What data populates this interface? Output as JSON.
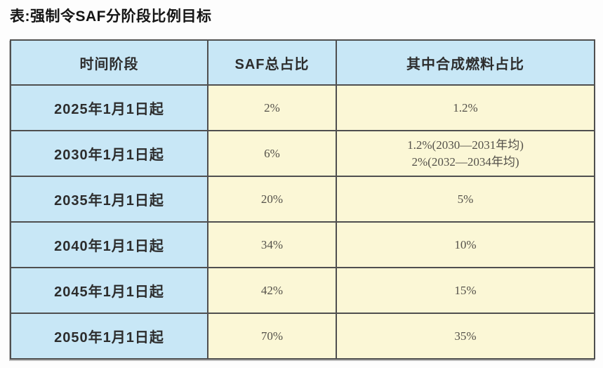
{
  "title": "表:强制令SAF分阶段比例目标",
  "colors": {
    "header_bg": "#c8e7f6",
    "cell_bg": "#fbf7d6",
    "border": "#4f4f4f",
    "title_color": "#151515",
    "period_color": "#2d2d2d",
    "value_color": "#54514a"
  },
  "chart_data": {
    "type": "table",
    "title": "表:强制令SAF分阶段比例目标",
    "columns": [
      "时间阶段",
      "SAF总占比",
      "其中合成燃料占比"
    ],
    "rows": [
      {
        "period": "2025年1月1日起",
        "saf_total": "2%",
        "synthetic": [
          "1.2%"
        ]
      },
      {
        "period": "2030年1月1日起",
        "saf_total": "6%",
        "synthetic": [
          "1.2%(2030—2031年均)",
          "2%(2032—2034年均)"
        ]
      },
      {
        "period": "2035年1月1日起",
        "saf_total": "20%",
        "synthetic": [
          "5%"
        ]
      },
      {
        "period": "2040年1月1日起",
        "saf_total": "34%",
        "synthetic": [
          "10%"
        ]
      },
      {
        "period": "2045年1月1日起",
        "saf_total": "42%",
        "synthetic": [
          "15%"
        ]
      },
      {
        "period": "2050年1月1日起",
        "saf_total": "70%",
        "synthetic": [
          "35%"
        ]
      }
    ]
  }
}
